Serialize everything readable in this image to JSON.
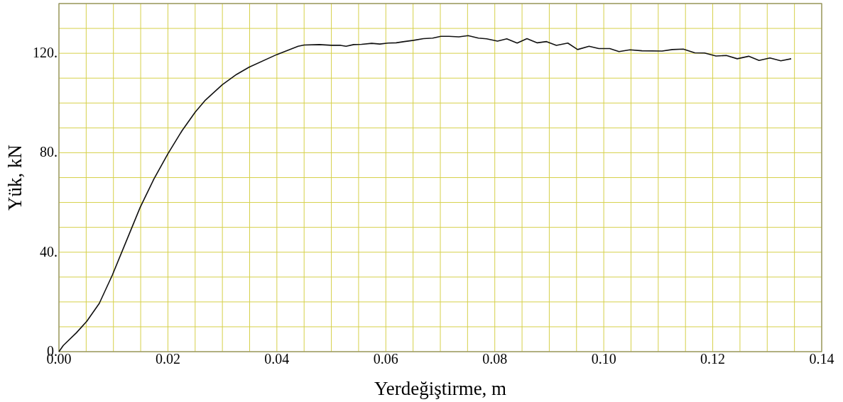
{
  "chart_data": {
    "type": "line",
    "xlabel": "Yerdeğiştirme, m",
    "ylabel": "Yük, kN",
    "xlim": [
      0,
      0.14
    ],
    "ylim": [
      0,
      140
    ],
    "xticks": [
      {
        "value": 0,
        "label": "0.00"
      },
      {
        "value": 0.005,
        "label": null
      },
      {
        "value": 0.01,
        "label": null
      },
      {
        "value": 0.015,
        "label": null
      },
      {
        "value": 0.02,
        "label": "0.02"
      },
      {
        "value": 0.025,
        "label": null
      },
      {
        "value": 0.03,
        "label": null
      },
      {
        "value": 0.035,
        "label": null
      },
      {
        "value": 0.04,
        "label": "0.04"
      },
      {
        "value": 0.045,
        "label": null
      },
      {
        "value": 0.05,
        "label": null
      },
      {
        "value": 0.055,
        "label": null
      },
      {
        "value": 0.06,
        "label": "0.06"
      },
      {
        "value": 0.065,
        "label": null
      },
      {
        "value": 0.07,
        "label": null
      },
      {
        "value": 0.075,
        "label": null
      },
      {
        "value": 0.08,
        "label": "0.08"
      },
      {
        "value": 0.085,
        "label": null
      },
      {
        "value": 0.09,
        "label": null
      },
      {
        "value": 0.095,
        "label": null
      },
      {
        "value": 0.1,
        "label": "0.10"
      },
      {
        "value": 0.105,
        "label": null
      },
      {
        "value": 0.11,
        "label": null
      },
      {
        "value": 0.115,
        "label": null
      },
      {
        "value": 0.12,
        "label": "0.12"
      },
      {
        "value": 0.125,
        "label": null
      },
      {
        "value": 0.13,
        "label": null
      },
      {
        "value": 0.135,
        "label": null
      },
      {
        "value": 0.14,
        "label": "0.14"
      }
    ],
    "yticks": [
      {
        "value": 0,
        "label": "0."
      },
      {
        "value": 10,
        "label": null
      },
      {
        "value": 20,
        "label": null
      },
      {
        "value": 30,
        "label": null
      },
      {
        "value": 40,
        "label": "40."
      },
      {
        "value": 50,
        "label": null
      },
      {
        "value": 60,
        "label": null
      },
      {
        "value": 70,
        "label": null
      },
      {
        "value": 80,
        "label": "80."
      },
      {
        "value": 90,
        "label": null
      },
      {
        "value": 100,
        "label": null
      },
      {
        "value": 110,
        "label": null
      },
      {
        "value": 120,
        "label": "120."
      },
      {
        "value": 130,
        "label": null
      },
      {
        "value": 140,
        "label": null
      }
    ],
    "grid": true,
    "series": [
      {
        "color": "#111111",
        "x": [
          0,
          0.0008,
          0.0032,
          0.0051,
          0.0074,
          0.0098,
          0.0122,
          0.0149,
          0.0174,
          0.02,
          0.0226,
          0.025,
          0.0269,
          0.03,
          0.0326,
          0.0349,
          0.04,
          0.0439,
          0.045,
          0.0478,
          0.05,
          0.0517,
          0.0527,
          0.0541,
          0.0556,
          0.0574,
          0.0589,
          0.0604,
          0.0619,
          0.0634,
          0.0651,
          0.0669,
          0.0686,
          0.0701,
          0.0716,
          0.0734,
          0.0751,
          0.077,
          0.0785,
          0.0805,
          0.0822,
          0.0841,
          0.0859,
          0.0878,
          0.0895,
          0.0913,
          0.0934,
          0.0952,
          0.0973,
          0.0991,
          0.1011,
          0.1028,
          0.1048,
          0.107,
          0.1107,
          0.1126,
          0.1146,
          0.1167,
          0.1185,
          0.1206,
          0.1225,
          0.1245,
          0.1266,
          0.1285,
          0.1305,
          0.1325,
          0.1344
        ],
        "values": [
          0,
          2.5,
          7.6,
          12.2,
          19.4,
          30.8,
          43.6,
          58,
          69.3,
          79.6,
          88.9,
          96.3,
          101.2,
          107.4,
          111.5,
          114.4,
          119.5,
          122.8,
          123.3,
          123.5,
          123.2,
          123.2,
          122.8,
          123.5,
          123.6,
          124,
          123.7,
          124.1,
          124.2,
          124.7,
          125.2,
          125.9,
          126.1,
          126.8,
          126.8,
          126.6,
          127.1,
          126.1,
          125.8,
          124.9,
          125.8,
          124.1,
          125.9,
          124.2,
          124.7,
          123.2,
          124.1,
          121.5,
          122.8,
          121.9,
          121.9,
          120.7,
          121.4,
          121,
          120.9,
          121.5,
          121.7,
          120.2,
          120.1,
          118.9,
          119.1,
          117.8,
          118.8,
          117.1,
          118.1,
          117,
          117.8
        ]
      }
    ]
  }
}
